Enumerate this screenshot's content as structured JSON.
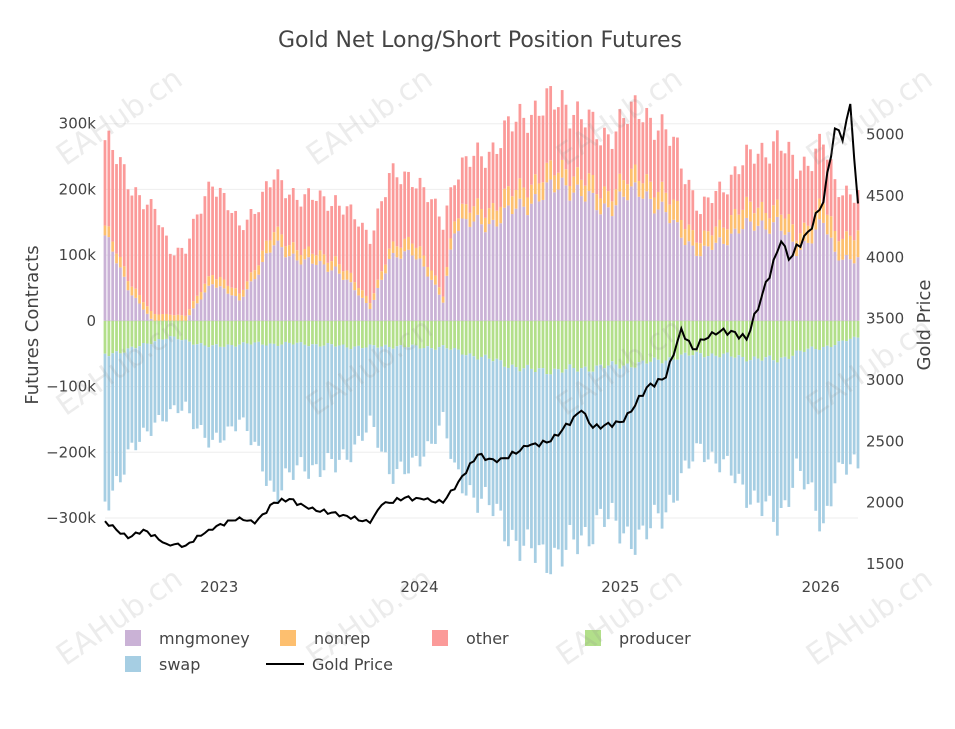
{
  "chart_data": {
    "type": "bar",
    "title": "Gold Net Long/Short Position Futures",
    "ylabel": "Futures Contracts",
    "y2label": "Gold Price",
    "stacked": true,
    "grid": true,
    "legend_position": "bottom",
    "ylim": [
      -370000,
      330000
    ],
    "y2lim": [
      1500,
      5250
    ],
    "xlim": [
      "2022-06-07",
      "2026-03-10"
    ],
    "y_ticks": [
      {
        "value": 300000,
        "label": "300k"
      },
      {
        "value": 200000,
        "label": "200k"
      },
      {
        "value": 100000,
        "label": "100k"
      },
      {
        "value": 0,
        "label": "0"
      },
      {
        "value": -100000,
        "label": "−100k"
      },
      {
        "value": -200000,
        "label": "−200k"
      },
      {
        "value": -300000,
        "label": "−300k"
      }
    ],
    "y2_ticks": [
      {
        "value": 5000,
        "label": "5000"
      },
      {
        "value": 4500,
        "label": "4500"
      },
      {
        "value": 4000,
        "label": "4000"
      },
      {
        "value": 3500,
        "label": "3500"
      },
      {
        "value": 3000,
        "label": "3000"
      },
      {
        "value": 2500,
        "label": "2500"
      },
      {
        "value": 2000,
        "label": "2000"
      },
      {
        "value": 1500,
        "label": "1500"
      }
    ],
    "x_ticks": [
      {
        "value": "2023-01-01",
        "label": "2023"
      },
      {
        "value": "2024-01-01",
        "label": "2024"
      },
      {
        "value": "2025-01-01",
        "label": "2025"
      },
      {
        "value": "2026-01-01",
        "label": "2026"
      }
    ],
    "bar_keyframes": [
      {
        "date": "2022-06-07",
        "mngmoney": 130000,
        "nonrep": 15000,
        "other": 130000,
        "producer": -50000,
        "swap": -225000
      },
      {
        "date": "2022-07-19",
        "mngmoney": 50000,
        "nonrep": 15000,
        "other": 150000,
        "producer": -45000,
        "swap": -165000
      },
      {
        "date": "2022-09-06",
        "mngmoney": -5000,
        "nonrep": 10000,
        "other": 155000,
        "producer": -30000,
        "swap": -120000
      },
      {
        "date": "2022-10-04",
        "mngmoney": -8000,
        "nonrep": 10000,
        "other": 100000,
        "producer": -25000,
        "swap": -120000
      },
      {
        "date": "2022-11-01",
        "mngmoney": 0,
        "nonrep": 8000,
        "other": 100000,
        "producer": -30000,
        "swap": -100000
      },
      {
        "date": "2022-12-20",
        "mngmoney": 60000,
        "nonrep": 15000,
        "other": 145000,
        "producer": -40000,
        "swap": -155000
      },
      {
        "date": "2023-02-07",
        "mngmoney": 30000,
        "nonrep": 10000,
        "other": 100000,
        "producer": -35000,
        "swap": -110000
      },
      {
        "date": "2023-04-11",
        "mngmoney": 115000,
        "nonrep": 20000,
        "other": 80000,
        "producer": -35000,
        "swap": -225000
      },
      {
        "date": "2023-06-06",
        "mngmoney": 90000,
        "nonrep": 15000,
        "other": 80000,
        "producer": -35000,
        "swap": -185000
      },
      {
        "date": "2023-08-01",
        "mngmoney": 80000,
        "nonrep": 15000,
        "other": 90000,
        "producer": -38000,
        "swap": -185000
      },
      {
        "date": "2023-10-03",
        "mngmoney": 20000,
        "nonrep": 10000,
        "other": 100000,
        "producer": -40000,
        "swap": -120000
      },
      {
        "date": "2023-11-07",
        "mngmoney": 90000,
        "nonrep": 15000,
        "other": 110000,
        "producer": -38000,
        "swap": -185000
      },
      {
        "date": "2023-12-19",
        "mngmoney": 110000,
        "nonrep": 20000,
        "other": 95000,
        "producer": -40000,
        "swap": -190000
      },
      {
        "date": "2024-02-13",
        "mngmoney": 30000,
        "nonrep": 10000,
        "other": 110000,
        "producer": -40000,
        "swap": -110000
      },
      {
        "date": "2024-03-05",
        "mngmoney": 145000,
        "nonrep": 20000,
        "other": 60000,
        "producer": -45000,
        "swap": -190000
      },
      {
        "date": "2024-05-14",
        "mngmoney": 150000,
        "nonrep": 25000,
        "other": 90000,
        "producer": -60000,
        "swap": -230000
      },
      {
        "date": "2024-07-16",
        "mngmoney": 180000,
        "nonrep": 30000,
        "other": 110000,
        "producer": -75000,
        "swap": -280000
      },
      {
        "date": "2024-09-24",
        "mngmoney": 210000,
        "nonrep": 25000,
        "other": 100000,
        "producer": -75000,
        "swap": -280000
      },
      {
        "date": "2024-11-26",
        "mngmoney": 170000,
        "nonrep": 25000,
        "other": 85000,
        "producer": -70000,
        "swap": -230000
      },
      {
        "date": "2025-02-11",
        "mngmoney": 200000,
        "nonrep": 25000,
        "other": 100000,
        "producer": -65000,
        "swap": -270000
      },
      {
        "date": "2025-04-15",
        "mngmoney": 140000,
        "nonrep": 30000,
        "other": 90000,
        "producer": -55000,
        "swap": -200000
      },
      {
        "date": "2025-05-27",
        "mngmoney": 100000,
        "nonrep": 20000,
        "other": 45000,
        "producer": -50000,
        "swap": -140000
      },
      {
        "date": "2025-08-05",
        "mngmoney": 140000,
        "nonrep": 30000,
        "other": 65000,
        "producer": -55000,
        "swap": -190000
      },
      {
        "date": "2025-10-14",
        "mngmoney": 150000,
        "nonrep": 25000,
        "other": 100000,
        "producer": -60000,
        "swap": -250000
      },
      {
        "date": "2025-11-18",
        "mngmoney": 105000,
        "nonrep": 25000,
        "other": 100000,
        "producer": -48000,
        "swap": -175000
      },
      {
        "date": "2026-01-06",
        "mngmoney": 150000,
        "nonrep": 30000,
        "other": 90000,
        "producer": -40000,
        "swap": -270000
      },
      {
        "date": "2026-01-27",
        "mngmoney": 100000,
        "nonrep": 30000,
        "other": 75000,
        "producer": -35000,
        "swap": -200000
      },
      {
        "date": "2026-03-10",
        "mngmoney": 95000,
        "nonrep": 40000,
        "other": 60000,
        "producer": -25000,
        "swap": -195000
      }
    ],
    "gold_price": [
      {
        "date": "2022-06-07",
        "price": 1850
      },
      {
        "date": "2022-07-19",
        "price": 1710
      },
      {
        "date": "2022-08-16",
        "price": 1780
      },
      {
        "date": "2022-09-27",
        "price": 1665
      },
      {
        "date": "2022-11-01",
        "price": 1650
      },
      {
        "date": "2022-12-13",
        "price": 1780
      },
      {
        "date": "2023-02-07",
        "price": 1880
      },
      {
        "date": "2023-03-07",
        "price": 1830
      },
      {
        "date": "2023-04-11",
        "price": 2000
      },
      {
        "date": "2023-05-09",
        "price": 2030
      },
      {
        "date": "2023-06-13",
        "price": 1950
      },
      {
        "date": "2023-08-15",
        "price": 1900
      },
      {
        "date": "2023-10-03",
        "price": 1835
      },
      {
        "date": "2023-10-24",
        "price": 1980
      },
      {
        "date": "2023-12-05",
        "price": 2040
      },
      {
        "date": "2024-01-09",
        "price": 2025
      },
      {
        "date": "2024-02-13",
        "price": 2000
      },
      {
        "date": "2024-03-12",
        "price": 2170
      },
      {
        "date": "2024-04-16",
        "price": 2390
      },
      {
        "date": "2024-05-21",
        "price": 2330
      },
      {
        "date": "2024-07-16",
        "price": 2460
      },
      {
        "date": "2024-08-27",
        "price": 2500
      },
      {
        "date": "2024-10-22",
        "price": 2750
      },
      {
        "date": "2024-11-12",
        "price": 2610
      },
      {
        "date": "2025-01-07",
        "price": 2660
      },
      {
        "date": "2025-02-18",
        "price": 2940
      },
      {
        "date": "2025-03-25",
        "price": 3020
      },
      {
        "date": "2025-04-22",
        "price": 3420
      },
      {
        "date": "2025-05-13",
        "price": 3250
      },
      {
        "date": "2025-06-17",
        "price": 3390
      },
      {
        "date": "2025-07-22",
        "price": 3400
      },
      {
        "date": "2025-08-19",
        "price": 3330
      },
      {
        "date": "2025-09-16",
        "price": 3690
      },
      {
        "date": "2025-10-21",
        "price": 4130
      },
      {
        "date": "2025-11-04",
        "price": 3980
      },
      {
        "date": "2025-12-09",
        "price": 4210
      },
      {
        "date": "2026-01-06",
        "price": 4450
      },
      {
        "date": "2026-01-27",
        "price": 5050
      },
      {
        "date": "2026-02-10",
        "price": 4950
      },
      {
        "date": "2026-02-24",
        "price": 5250
      },
      {
        "date": "2026-03-10",
        "price": 4440
      }
    ],
    "series": [
      {
        "key": "mngmoney",
        "name": "mngmoney",
        "color": "#cab2d6",
        "kind": "bar"
      },
      {
        "key": "nonrep",
        "name": "nonrep",
        "color": "#fdbf6f",
        "kind": "bar"
      },
      {
        "key": "other",
        "name": "other",
        "color": "#fb9a99",
        "kind": "bar"
      },
      {
        "key": "producer",
        "name": "producer",
        "color": "#b2df8a",
        "kind": "bar"
      },
      {
        "key": "swap",
        "name": "swap",
        "color": "#a6cee3",
        "kind": "bar"
      },
      {
        "key": "gold",
        "name": "Gold Price",
        "color": "#000000",
        "kind": "line"
      }
    ]
  },
  "watermark": {
    "text": "EAHub.cn"
  }
}
